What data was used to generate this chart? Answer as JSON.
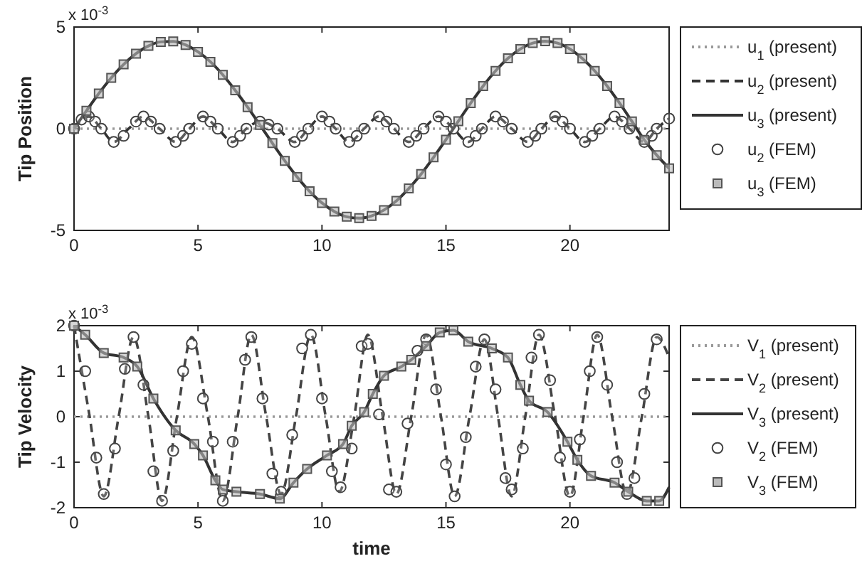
{
  "chart_data": [
    {
      "type": "line",
      "ylabel": "Tip Position",
      "annotations": [
        "x 10$^{-3}$"
      ],
      "xlim": [
        0,
        24
      ],
      "ylim": [
        -5,
        5
      ],
      "xticks": [
        0,
        5,
        10,
        15,
        20
      ],
      "yticks": [
        -5,
        0,
        5
      ],
      "legend": "right",
      "series": [
        {
          "name": "u$_{1}$ (present)",
          "type": "line",
          "line_style": "dotted",
          "marker": "none",
          "color": "#999999",
          "x": [
            0,
            24
          ],
          "values": [
            0,
            0
          ]
        },
        {
          "name": "u$_{2}$ (present)",
          "type": "line",
          "line_style": "dashed",
          "marker": "none",
          "color": "#333333",
          "x": [
            0,
            0.6,
            1.1,
            1.6,
            2.2,
            2.8,
            3.45,
            4.1,
            4.65,
            5.2,
            5.8,
            6.4,
            6.95,
            7.5,
            8.2,
            8.9,
            9.45,
            10,
            10.55,
            11.1,
            11.7,
            12.3,
            12.9,
            13.5,
            14.1,
            14.7,
            15.3,
            15.9,
            16.45,
            17,
            17.65,
            18.3,
            18.85,
            19.4,
            20,
            20.6,
            21.2,
            21.8,
            22.4,
            23,
            23.5,
            24
          ],
          "values": [
            0,
            0.6,
            0,
            -0.65,
            0,
            0.6,
            0,
            -0.65,
            0,
            0.6,
            0,
            -0.65,
            0,
            0.35,
            0,
            -0.65,
            0,
            0.6,
            0,
            -0.65,
            0,
            0.6,
            0,
            -0.65,
            0,
            0.6,
            0,
            -0.65,
            0,
            0.6,
            0,
            -0.65,
            0,
            0.6,
            0,
            -0.65,
            0,
            0.6,
            0,
            -0.65,
            0,
            0.5
          ]
        },
        {
          "name": "u$_{3}$ (present)",
          "type": "line",
          "line_style": "solid",
          "marker": "none",
          "color": "#333333",
          "x": [
            0,
            0.5,
            1,
            1.5,
            2,
            2.5,
            3,
            3.5,
            4,
            4.5,
            5,
            5.5,
            6,
            6.5,
            7,
            7.5,
            8,
            8.5,
            9,
            9.5,
            10,
            10.5,
            11,
            11.5,
            12,
            12.5,
            13,
            13.5,
            14,
            14.5,
            15,
            15.5,
            16,
            16.5,
            17,
            17.5,
            18,
            18.5,
            19,
            19.5,
            20,
            20.5,
            21,
            21.5,
            22,
            22.5,
            23,
            23.5,
            24
          ],
          "values": [
            0,
            0.88,
            1.73,
            2.5,
            3.16,
            3.69,
            4.07,
            4.27,
            4.29,
            4.12,
            3.78,
            3.29,
            2.65,
            1.89,
            1.06,
            0.18,
            -0.71,
            -1.58,
            -2.38,
            -3.08,
            -3.65,
            -4.07,
            -4.33,
            -4.4,
            -4.29,
            -4,
            -3.55,
            -2.94,
            -2.23,
            -1.41,
            -0.54,
            0.37,
            1.26,
            2.1,
            2.84,
            3.46,
            3.92,
            4.21,
            4.3,
            4.21,
            3.92,
            3.45,
            2.84,
            2.1,
            1.26,
            0.36,
            -0.55,
            -1.3,
            -1.95
          ]
        },
        {
          "name": "u$_{2}$ (FEM)",
          "type": "scatter",
          "marker": "circle",
          "color": "#444444",
          "x": [
            0,
            0.3,
            0.6,
            0.85,
            1.1,
            1.6,
            2,
            2.5,
            2.8,
            3.1,
            3.45,
            4.1,
            4.4,
            4.65,
            5.2,
            5.5,
            5.8,
            6.4,
            6.7,
            6.95,
            7.5,
            7.85,
            8.2,
            8.9,
            9.2,
            9.45,
            10,
            10.3,
            10.55,
            11.1,
            11.4,
            11.7,
            12.3,
            12.6,
            12.9,
            13.5,
            13.8,
            14.1,
            14.7,
            15,
            15.3,
            15.9,
            16.2,
            16.45,
            17,
            17.3,
            17.65,
            18.3,
            18.6,
            18.85,
            19.4,
            19.7,
            20,
            20.6,
            20.9,
            21.2,
            21.8,
            22.1,
            22.4,
            23,
            23.3,
            23.5,
            24
          ],
          "values": [
            0,
            0.45,
            0.6,
            0.35,
            0,
            -0.65,
            -0.35,
            0.35,
            0.6,
            0.35,
            0,
            -0.65,
            -0.35,
            0,
            0.6,
            0.35,
            0,
            -0.65,
            -0.35,
            0,
            0.35,
            0.2,
            0,
            -0.65,
            -0.35,
            0,
            0.6,
            0.35,
            0,
            -0.65,
            -0.35,
            0,
            0.6,
            0.35,
            0,
            -0.65,
            -0.35,
            0,
            0.6,
            0.35,
            0,
            -0.65,
            -0.35,
            0,
            0.6,
            0.35,
            0,
            -0.65,
            -0.35,
            0,
            0.6,
            0.35,
            0,
            -0.65,
            -0.35,
            0,
            0.6,
            0.35,
            0,
            -0.65,
            -0.35,
            0,
            0.5
          ]
        },
        {
          "name": "u$_{3}$ (FEM)",
          "type": "scatter",
          "marker": "square",
          "color": "#555555",
          "x": [
            0,
            0.5,
            1,
            1.5,
            2,
            2.5,
            3,
            3.5,
            4,
            4.5,
            5,
            5.5,
            6,
            6.5,
            7,
            7.5,
            8,
            8.5,
            9,
            9.5,
            10,
            10.5,
            11,
            11.5,
            12,
            12.5,
            13,
            13.5,
            14,
            14.5,
            15,
            15.5,
            16,
            16.5,
            17,
            17.5,
            18,
            18.5,
            19,
            19.5,
            20,
            20.5,
            21,
            21.5,
            22,
            22.5,
            23,
            23.5,
            24
          ],
          "values": [
            0,
            0.88,
            1.73,
            2.5,
            3.16,
            3.69,
            4.07,
            4.27,
            4.29,
            4.12,
            3.78,
            3.29,
            2.65,
            1.89,
            1.06,
            0.18,
            -0.71,
            -1.58,
            -2.38,
            -3.08,
            -3.65,
            -4.07,
            -4.33,
            -4.4,
            -4.29,
            -4,
            -3.55,
            -2.94,
            -2.23,
            -1.41,
            -0.54,
            0.37,
            1.26,
            2.1,
            2.84,
            3.46,
            3.92,
            4.21,
            4.3,
            4.21,
            3.92,
            3.45,
            2.84,
            2.1,
            1.26,
            0.36,
            -0.55,
            -1.3,
            -1.95
          ]
        }
      ]
    },
    {
      "type": "line",
      "xlabel": "time",
      "ylabel": "Tip Velocity",
      "annotations": [
        "x 10$^{-3}$"
      ],
      "xlim": [
        0,
        24
      ],
      "ylim": [
        -2,
        2
      ],
      "xticks": [
        0,
        5,
        10,
        15,
        20
      ],
      "yticks": [
        -2,
        -1,
        0,
        1,
        2
      ],
      "legend": "right",
      "series": [
        {
          "name": "V$_{1}$ (present)",
          "type": "line",
          "line_style": "dotted",
          "marker": "none",
          "color": "#999999",
          "x": [
            0,
            24
          ],
          "values": [
            0,
            0
          ]
        },
        {
          "name": "V$_{2}$ (present)",
          "type": "line",
          "line_style": "dashed",
          "marker": "none",
          "color": "#444444",
          "x": [
            0,
            0.6,
            1.2,
            1.8,
            2.4,
            3,
            3.55,
            4.15,
            4.75,
            5.4,
            6,
            6.6,
            7.15,
            7.75,
            8.35,
            8.95,
            9.55,
            10.15,
            10.7,
            11.3,
            11.85,
            12.45,
            13,
            13.6,
            14.2,
            14.8,
            15.35,
            15.95,
            16.55,
            17.1,
            17.65,
            18.2,
            18.75,
            19.4,
            20,
            20.55,
            21.1,
            21.7,
            22.3,
            22.9,
            23.5,
            24
          ],
          "values": [
            2,
            0.1,
            -1.75,
            0,
            1.75,
            0,
            -1.85,
            0,
            1.75,
            0,
            -1.85,
            0,
            1.8,
            0,
            -1.7,
            0,
            1.8,
            0,
            -1.65,
            0,
            1.8,
            0,
            -1.7,
            0,
            1.8,
            0,
            -1.75,
            0,
            1.7,
            0,
            -1.75,
            0,
            1.8,
            0,
            -1.75,
            0,
            1.8,
            0,
            -1.7,
            0,
            1.75,
            1.3
          ]
        },
        {
          "name": "V$_{3}$ (present)",
          "type": "line",
          "line_style": "solid",
          "marker": "none",
          "color": "#333333",
          "x": [
            0,
            0.45,
            1.2,
            2,
            2.55,
            3.2,
            4.1,
            4.85,
            5.2,
            5.7,
            6,
            6.55,
            7.5,
            8.3,
            8.85,
            9.4,
            10.2,
            10.85,
            11.2,
            11.7,
            12.05,
            12.5,
            13.2,
            13.6,
            14.2,
            14.75,
            15.3,
            15.9,
            16.85,
            17.5,
            18,
            18.35,
            19.1,
            19.9,
            20.3,
            20.85,
            21.8,
            22.35,
            23.1,
            23.6,
            24
          ],
          "values": [
            2,
            1.8,
            1.4,
            1.3,
            1.1,
            0.4,
            -0.3,
            -0.6,
            -0.85,
            -1.4,
            -1.6,
            -1.65,
            -1.7,
            -1.8,
            -1.45,
            -1.15,
            -0.85,
            -0.6,
            -0.2,
            0.1,
            0.5,
            0.9,
            1.1,
            1.25,
            1.55,
            1.85,
            1.9,
            1.65,
            1.5,
            1.3,
            0.7,
            0.35,
            0.1,
            -0.55,
            -0.95,
            -1.3,
            -1.45,
            -1.65,
            -1.85,
            -1.85,
            -1.55
          ]
        },
        {
          "name": "V$_{2}$ (FEM)",
          "type": "scatter",
          "marker": "circle",
          "color": "#444444",
          "x": [
            0,
            0.45,
            0.9,
            1.2,
            1.65,
            2.05,
            2.4,
            2.8,
            3.2,
            3.55,
            4,
            4.4,
            4.75,
            5.2,
            5.6,
            6,
            6.4,
            6.9,
            7.15,
            7.6,
            8,
            8.35,
            8.8,
            9.2,
            9.55,
            10,
            10.4,
            10.75,
            11.2,
            11.6,
            11.85,
            12.3,
            12.7,
            13,
            13.45,
            13.85,
            14.2,
            14.6,
            15,
            15.35,
            15.8,
            16.2,
            16.55,
            17,
            17.4,
            17.65,
            18.1,
            18.45,
            18.75,
            19.2,
            19.6,
            20,
            20.4,
            20.8,
            21.1,
            21.5,
            21.9,
            22.3,
            22.6,
            23,
            23.5
          ],
          "values": [
            2,
            1,
            -0.9,
            -1.7,
            -0.7,
            1.05,
            1.75,
            0.7,
            -1.2,
            -1.85,
            -0.75,
            1,
            1.6,
            0.4,
            -0.55,
            -1.85,
            -0.55,
            1.25,
            1.75,
            0.4,
            -1.25,
            -1.65,
            -0.4,
            1.5,
            1.8,
            0.4,
            -1.2,
            -1.55,
            -0.7,
            1.55,
            1.6,
            0.05,
            -1.6,
            -1.65,
            -0.15,
            1.45,
            1.7,
            0.6,
            -1.05,
            -1.75,
            -0.45,
            1.1,
            1.7,
            0.6,
            -1.35,
            -1.6,
            -0.7,
            1.3,
            1.8,
            0.8,
            -0.9,
            -1.65,
            -0.5,
            1,
            1.75,
            0.7,
            -1,
            -1.7,
            -1.35,
            0.5,
            1.7
          ]
        },
        {
          "name": "V$_{3}$ (FEM)",
          "type": "scatter",
          "marker": "square",
          "color": "#555555",
          "x": [
            0,
            0.45,
            1.2,
            2,
            2.55,
            3.2,
            4.1,
            4.85,
            5.2,
            5.7,
            6,
            6.55,
            7.5,
            8.3,
            8.85,
            9.4,
            10.2,
            10.85,
            11.2,
            11.7,
            12.05,
            12.5,
            13.2,
            13.6,
            14.2,
            14.75,
            15.3,
            15.9,
            16.85,
            17.5,
            18,
            18.35,
            19.1,
            19.9,
            20.3,
            20.85,
            21.8,
            22.35,
            23.1,
            23.6
          ],
          "values": [
            2,
            1.8,
            1.4,
            1.3,
            1.1,
            0.4,
            -0.3,
            -0.6,
            -0.85,
            -1.4,
            -1.6,
            -1.65,
            -1.7,
            -1.8,
            -1.45,
            -1.15,
            -0.85,
            -0.6,
            -0.2,
            0.1,
            0.5,
            0.9,
            1.1,
            1.25,
            1.55,
            1.85,
            1.9,
            1.65,
            1.5,
            1.3,
            0.7,
            0.35,
            0.1,
            -0.55,
            -0.95,
            -1.3,
            -1.45,
            -1.65,
            -1.85,
            -1.85
          ]
        }
      ]
    }
  ]
}
